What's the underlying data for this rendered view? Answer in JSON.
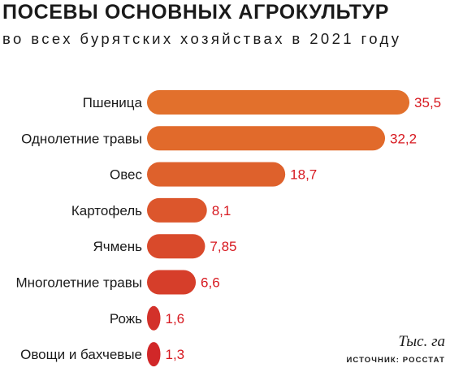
{
  "header": {
    "title": "ПОСЕВЫ ОСНОВНЫХ АГРОКУЛЬТУР",
    "subtitle": "во всех бурятских хозяйствах в 2021 году"
  },
  "footer": {
    "unit": "Тыс. га",
    "source": "ИСТОЧНИК: РОССТАТ"
  },
  "chart_data": {
    "type": "bar",
    "orientation": "horizontal",
    "title": "ПОСЕВЫ ОСНОВНЫХ АГРОКУЛЬТУР",
    "subtitle": "во всех бурятских хозяйствах в 2021 году",
    "unit": "Тыс. га",
    "categories": [
      "Пшеница",
      "Однолетние травы",
      "Овес",
      "Картофель",
      "Ячмень",
      "Многолетние травы",
      "Рожь",
      "Овощи и бахчевые"
    ],
    "values": [
      35.5,
      32.2,
      18.7,
      8.1,
      7.85,
      6.6,
      1.6,
      1.3
    ],
    "value_labels": [
      "35,5",
      "32,2",
      "18,7",
      "8,1",
      "7,85",
      "6,6",
      "1,6",
      "1,3"
    ],
    "colors": [
      "#e2702c",
      "#e16a2b",
      "#de612c",
      "#dc562c",
      "#d94a2b",
      "#d63e2a",
      "#d3312a",
      "#d12728"
    ],
    "value_label_color": "#d71920",
    "grid": false,
    "legend": "none"
  }
}
